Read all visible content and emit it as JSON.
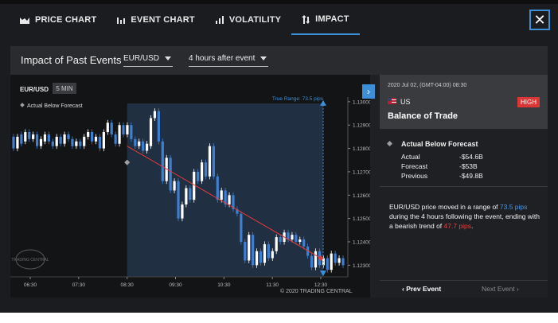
{
  "tabs": [
    {
      "label": "PRICE CHART",
      "icon": "area-chart-icon"
    },
    {
      "label": "EVENT CHART",
      "icon": "bar-chart-icon"
    },
    {
      "label": "VOLATILITY",
      "icon": "volatility-bars-icon"
    },
    {
      "label": "IMPACT",
      "icon": "impact-arrows-icon",
      "active": true
    }
  ],
  "close_icon": "close-icon",
  "panel": {
    "title": "Impact of Past Events",
    "symbol_select": "EUR/USD",
    "horizon_select": "4 hours after event"
  },
  "chart": {
    "symbol": "EUR/USD",
    "timeframe": "5 MIN",
    "legend": "Actual Below Forecast",
    "true_range": "True Range: 73.5 pips",
    "copyright": "© 2020 TRADING CENTRAL",
    "watermark": "TRADING CENTRAL"
  },
  "chart_data": {
    "type": "candlestick",
    "x_ticks": [
      "06:30",
      "07:30",
      "08:30",
      "09:30",
      "10:30",
      "11:30",
      "12:30"
    ],
    "y_ticks": [
      "1.13000",
      "1.12900",
      "1.12800",
      "1.12700",
      "1.12600",
      "1.12500",
      "1.12400",
      "1.12300"
    ],
    "ylim": [
      1.1225,
      1.1302
    ],
    "event_time": "08:30",
    "trend_line": {
      "from": [
        "08:30",
        1.1281
      ],
      "to": [
        "12:30",
        1.1233
      ]
    },
    "range_bracket": {
      "high": 1.13,
      "low": 1.1226
    },
    "candles": [
      [
        1.1285,
        1.128
      ],
      [
        1.128,
        1.1285
      ],
      [
        1.1286,
        1.1282
      ],
      [
        1.1283,
        1.1287
      ],
      [
        1.1287,
        1.1284
      ],
      [
        1.1284,
        1.1286
      ],
      [
        1.1286,
        1.1281
      ],
      [
        1.1281,
        1.1284
      ],
      [
        1.1283,
        1.1286
      ],
      [
        1.1286,
        1.1283
      ],
      [
        1.1283,
        1.1281
      ],
      [
        1.1281,
        1.1285
      ],
      [
        1.1285,
        1.1282
      ],
      [
        1.1282,
        1.1286
      ],
      [
        1.1286,
        1.1284
      ],
      [
        1.1284,
        1.1281
      ],
      [
        1.1281,
        1.1283
      ],
      [
        1.1283,
        1.1281
      ],
      [
        1.1281,
        1.1285
      ],
      [
        1.1285,
        1.1287
      ],
      [
        1.1287,
        1.1283
      ],
      [
        1.1283,
        1.1285
      ],
      [
        1.1285,
        1.128
      ],
      [
        1.128,
        1.1287
      ],
      [
        1.1287,
        1.1291
      ],
      [
        1.1291,
        1.1286
      ],
      [
        1.1286,
        1.1282
      ],
      [
        1.1282,
        1.129
      ],
      [
        1.129,
        1.1286
      ],
      [
        1.1286,
        1.129
      ],
      [
        1.129,
        1.1284
      ],
      [
        1.1284,
        1.1281
      ],
      [
        1.1281,
        1.1283
      ],
      [
        1.1283,
        1.1279
      ],
      [
        1.1279,
        1.1282
      ],
      [
        1.1281,
        1.1293
      ],
      [
        1.1293,
        1.1296
      ],
      [
        1.1296,
        1.1283
      ],
      [
        1.1283,
        1.1266
      ],
      [
        1.1266,
        1.1276
      ],
      [
        1.1276,
        1.1262
      ],
      [
        1.1262,
        1.1266
      ],
      [
        1.1266,
        1.125
      ],
      [
        1.125,
        1.1256
      ],
      [
        1.1256,
        1.1263
      ],
      [
        1.1263,
        1.1258
      ],
      [
        1.1258,
        1.127
      ],
      [
        1.127,
        1.1266
      ],
      [
        1.1266,
        1.1274
      ],
      [
        1.1274,
        1.1268
      ],
      [
        1.1268,
        1.1281
      ],
      [
        1.1281,
        1.1268
      ],
      [
        1.1268,
        1.1258
      ],
      [
        1.1258,
        1.1262
      ],
      [
        1.1262,
        1.1256
      ],
      [
        1.1256,
        1.126
      ],
      [
        1.126,
        1.1254
      ],
      [
        1.1254,
        1.1252
      ],
      [
        1.1252,
        1.124
      ],
      [
        1.124,
        1.1232
      ],
      [
        1.1232,
        1.1243
      ],
      [
        1.1243,
        1.123
      ],
      [
        1.123,
        1.1236
      ],
      [
        1.1236,
        1.1231
      ],
      [
        1.1231,
        1.1239
      ],
      [
        1.1239,
        1.1233
      ],
      [
        1.1233,
        1.1236
      ],
      [
        1.1236,
        1.1242
      ],
      [
        1.1242,
        1.124
      ],
      [
        1.124,
        1.1244
      ],
      [
        1.1244,
        1.1241
      ],
      [
        1.1241,
        1.1243
      ],
      [
        1.1243,
        1.124
      ],
      [
        1.124,
        1.1241
      ],
      [
        1.1241,
        1.1238
      ],
      [
        1.1238,
        1.1234
      ],
      [
        1.1234,
        1.1229
      ],
      [
        1.1229,
        1.1236
      ],
      [
        1.1236,
        1.123
      ],
      [
        1.123,
        1.1233
      ],
      [
        1.1233,
        1.1228
      ],
      [
        1.1228,
        1.1235
      ],
      [
        1.1235,
        1.1231
      ],
      [
        1.1231,
        1.1233
      ],
      [
        1.1233,
        1.123
      ]
    ]
  },
  "event": {
    "datetime": "2020 Jul 02, (GMT-04:00) 08:30",
    "country": "US",
    "impact": "HIGH",
    "name": "Balance of Trade",
    "result": "Actual Below Forecast",
    "actual_label": "Actual",
    "actual_value": "-$54.6B",
    "forecast_label": "Forecast",
    "forecast_value": "-$53B",
    "previous_label": "Previous",
    "previous_value": "-$49.8B"
  },
  "summary": {
    "part1": "EUR/USD price moved in a range of ",
    "range": "73.5 pips",
    "part2": " during the 4 hours following the event, ending with a bearish trend of ",
    "trend": "47.7 pips",
    "part3": "."
  },
  "nav": {
    "prev": "Prev Event",
    "next": "Next Event"
  },
  "colors": {
    "accent": "#3d8fd8",
    "high": "#d93636",
    "bullish_candle": "#ffffff",
    "bearish_candle": "#3f7fd0",
    "trend_line": "#e23a3a"
  }
}
